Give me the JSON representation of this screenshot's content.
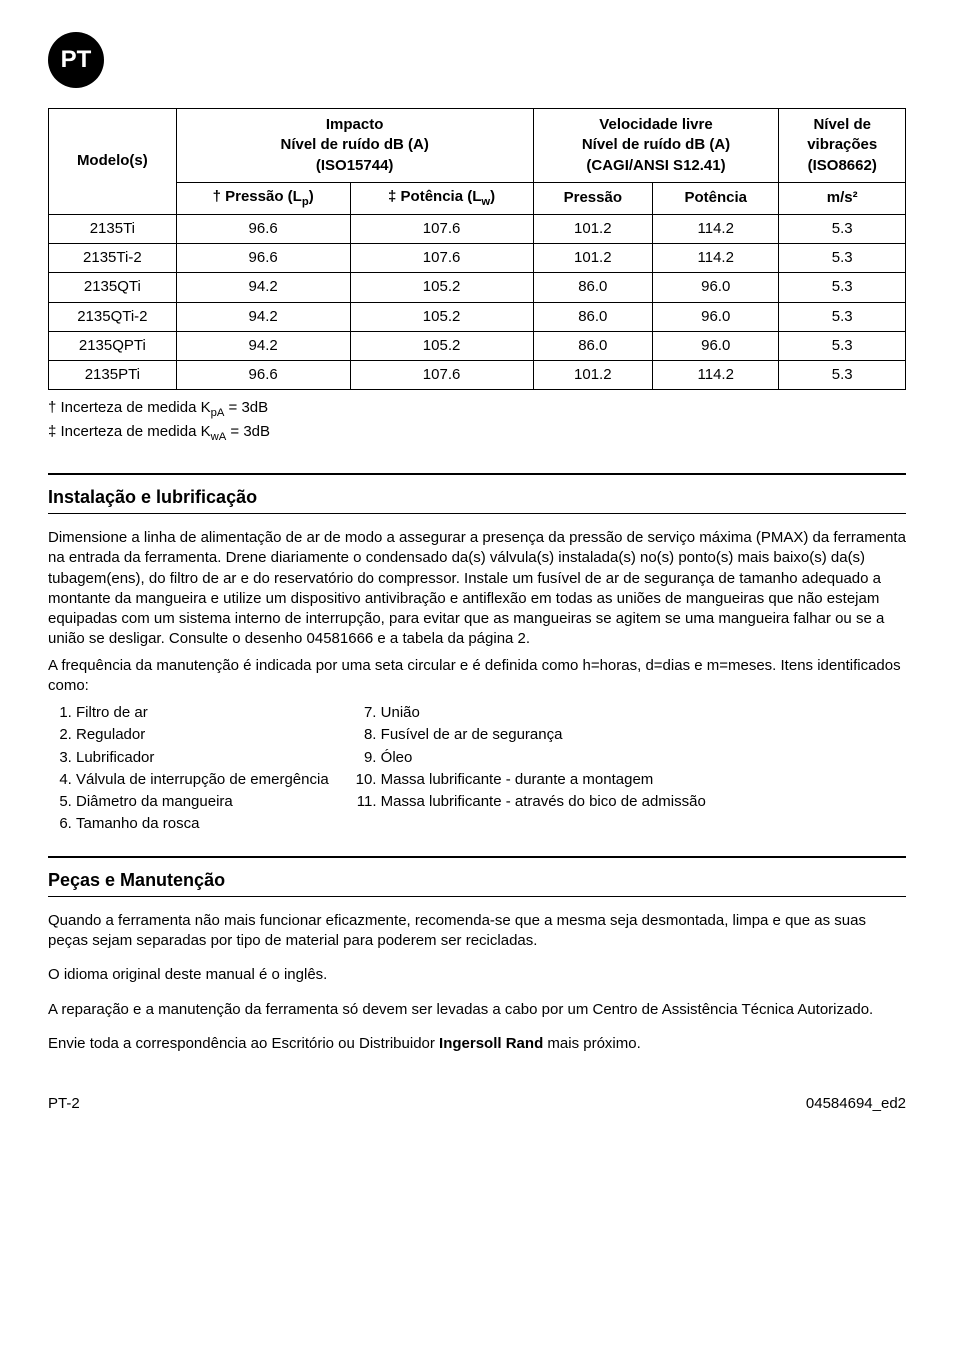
{
  "badge": "PT",
  "table": {
    "headers": {
      "model": "Modelo(s)",
      "impacto_group": "Impacto\nNível de ruído dB (A)\n(ISO15744)",
      "velocidade_group": "Velocidade livre\nNível de ruído dB (A)\n(CAGI/ANSI S12.41)",
      "nivel": "Nível de vibrações (ISO8662)",
      "pressao_lp": "† Pressão (Lₚ)",
      "potencia_lw": "‡ Potência (Lᵥᵥ)",
      "pressao": "Pressão",
      "potencia": "Potência",
      "ms2": "m/s²"
    },
    "rows": [
      {
        "model": "2135Ti",
        "p_lp": "96.6",
        "p_lw": "107.6",
        "pressao": "101.2",
        "potencia": "114.2",
        "ms2": "5.3"
      },
      {
        "model": "2135Ti-2",
        "p_lp": "96.6",
        "p_lw": "107.6",
        "pressao": "101.2",
        "potencia": "114.2",
        "ms2": "5.3"
      },
      {
        "model": "2135QTi",
        "p_lp": "94.2",
        "p_lw": "105.2",
        "pressao": "86.0",
        "potencia": "96.0",
        "ms2": "5.3"
      },
      {
        "model": "2135QTi-2",
        "p_lp": "94.2",
        "p_lw": "105.2",
        "pressao": "86.0",
        "potencia": "96.0",
        "ms2": "5.3"
      },
      {
        "model": "2135QPTi",
        "p_lp": "94.2",
        "p_lw": "105.2",
        "pressao": "86.0",
        "potencia": "96.0",
        "ms2": "5.3"
      },
      {
        "model": "2135PTi",
        "p_lp": "96.6",
        "p_lw": "107.6",
        "pressao": "101.2",
        "potencia": "114.2",
        "ms2": "5.3"
      }
    ],
    "note1": "† Incerteza de medida KₚA = 3dB",
    "note2": "‡ Incerteza de medida KᵥᵥA = 3dB"
  },
  "section1": {
    "title": "Instalação e lubrificação",
    "para": "Dimensione a linha de alimentação de ar de modo a assegurar a presença da pressão de serviço máxima (PMAX) da ferramenta na entrada da ferramenta. Drene diariamente o condensado da(s) válvula(s) instalada(s) no(s) ponto(s) mais baixo(s) da(s) tubagem(ens), do filtro de ar e do reservatório do compressor. Instale um fusível de ar de segurança de tamanho adequado a montante da mangueira e utilize um dispositivo antivibração e antiflexão em todas as uniões de mangueiras que não estejam equipadas com um sistema interno de interrupção, para evitar que as mangueiras se agitem se uma mangueira falhar ou se a união se desligar. Consulte o desenho 04581666 e a tabela da página 2.",
    "para2": "A frequência da manutenção é indicada por uma seta circular e é definida como h=horas, d=dias e m=meses. Itens identificados como:",
    "list_left": [
      "Filtro de ar",
      "Regulador",
      "Lubrificador",
      "Válvula de interrupção de emergência",
      "Diâmetro da mangueira",
      "Tamanho da rosca"
    ],
    "list_right": [
      "União",
      "Fusível de ar de segurança",
      "Óleo",
      "Massa lubrificante - durante a montagem",
      "Massa lubrificante - através do bico de admissão"
    ]
  },
  "section2": {
    "title": "Peças e Manutenção",
    "p1": "Quando a ferramenta não mais funcionar eficazmente, recomenda-se que a mesma seja desmontada, limpa e que as suas peças sejam separadas por tipo de material para poderem ser recicladas.",
    "p2": "O idioma original deste manual é o inglês.",
    "p3": "A reparação e a manutenção da ferramenta só devem ser levadas a cabo por um Centro de Assistência Técnica Autorizado.",
    "p4_pre": "Envie toda a correspondência ao Escritório ou Distribuidor ",
    "p4_bold": "Ingersoll Rand",
    "p4_post": " mais próximo."
  },
  "footer": {
    "left": "PT-2",
    "right": "04584694_ed2"
  }
}
